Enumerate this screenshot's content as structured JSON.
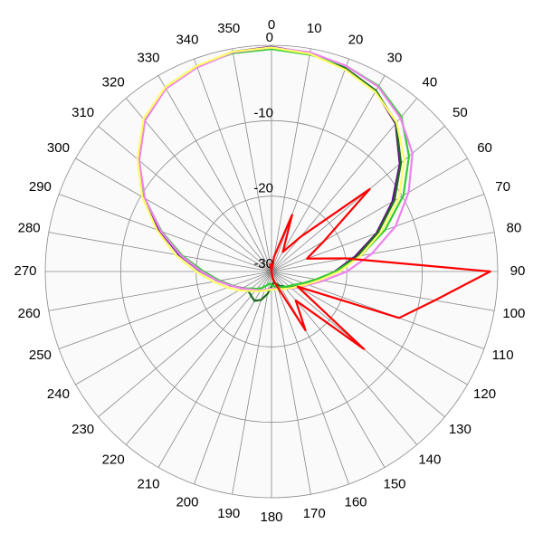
{
  "chart_data": {
    "type": "polar",
    "x": [
      0,
      10,
      20,
      30,
      40,
      50,
      60,
      70,
      80,
      90,
      100,
      110,
      120,
      130,
      140,
      150,
      160,
      170,
      180,
      190,
      200,
      210,
      220,
      230,
      240,
      250,
      260,
      270,
      280,
      290,
      300,
      310,
      320,
      330,
      340,
      350
    ],
    "xticks": [
      0,
      10,
      20,
      30,
      40,
      50,
      60,
      70,
      80,
      90,
      100,
      110,
      120,
      130,
      140,
      150,
      160,
      170,
      180,
      190,
      200,
      210,
      220,
      230,
      240,
      250,
      260,
      270,
      280,
      290,
      300,
      310,
      320,
      330,
      340,
      350
    ],
    "ylim": [
      -30,
      0
    ],
    "yticks": [
      0,
      -10,
      -20,
      -30
    ],
    "grid": true,
    "series": [
      {
        "color": "#6a0a8a",
        "values": [
          -0.2,
          -0.6,
          -1.4,
          -2.4,
          -4.4,
          -7.8,
          -11.5,
          -15.2,
          -18.8,
          -21.6,
          -23.6,
          -25,
          -26,
          -26.7,
          -27.1,
          -27.4,
          -27.6,
          -27.7,
          -27.7,
          -27.6,
          -27.4,
          -27.1,
          -26.8,
          -26.3,
          -25.6,
          -24.4,
          -22.8,
          -20.6,
          -17.6,
          -14.2,
          -10.5,
          -7,
          -3.8,
          -1.9,
          -1.1,
          -0.4
        ]
      },
      {
        "color": "#1a6b1a",
        "values": [
          -0.4,
          -0.6,
          -1.3,
          -2.3,
          -4.3,
          -7.6,
          -11.2,
          -15,
          -18.5,
          -21.5,
          -23.8,
          -25,
          -26,
          -26.8,
          -27.4,
          -27.8,
          -28.3,
          -28.5,
          -28,
          -27,
          -26,
          -25.5,
          -25.8,
          -26,
          -25.5,
          -24.5,
          -23,
          -20.8,
          -17.8,
          -14.4,
          -10.6,
          -7,
          -3.8,
          -1.9,
          -1.1,
          -0.5
        ]
      },
      {
        "color": "#33cc33",
        "values": [
          -0.5,
          -0.8,
          -1.0,
          -1.6,
          -3.2,
          -6.2,
          -9.8,
          -14,
          -18,
          -21.5,
          -24,
          -25.5,
          -26.5,
          -27,
          -27.3,
          -27.6,
          -27.8,
          -28,
          -28.2,
          -28.4,
          -28,
          -27.5,
          -27,
          -26.5,
          -25.5,
          -24.5,
          -23,
          -21,
          -18,
          -14.5,
          -10.5,
          -7,
          -3.8,
          -1.8,
          -1,
          -0.6
        ]
      },
      {
        "color": "#ee82ee",
        "values": [
          -0.3,
          -0.5,
          -1.0,
          -1.7,
          -3.4,
          -5.6,
          -9,
          -12.5,
          -16.5,
          -20,
          -23,
          -24.8,
          -25.8,
          -26.5,
          -27,
          -27.3,
          -27.6,
          -27.7,
          -27.7,
          -27.6,
          -27.4,
          -27.1,
          -26.8,
          -26.3,
          -25.5,
          -24.4,
          -22.8,
          -20.7,
          -17.8,
          -14.4,
          -10.6,
          -7.1,
          -3.9,
          -2,
          -1.2,
          -0.5
        ]
      },
      {
        "color": "#ffff66",
        "values": [
          -0.3,
          -0.7,
          -1.5,
          -2.5,
          -4.2,
          -7,
          -10.5,
          -14.5,
          -18,
          -21,
          -23.5,
          -25,
          -26,
          -26.6,
          -27,
          -27.3,
          -27.5,
          -27.6,
          -27.6,
          -27.5,
          -27.3,
          -27,
          -26.6,
          -26,
          -25,
          -23.8,
          -22.2,
          -20,
          -17,
          -13.8,
          -10.2,
          -6.8,
          -3.6,
          -1.8,
          -1,
          -0.4
        ]
      },
      {
        "color": "#ff0000",
        "values": [
          -30,
          -28,
          -22,
          -27,
          -24,
          -13,
          -22,
          -25,
          -20,
          -1,
          -8,
          -12,
          -26,
          -14,
          -25,
          -21,
          -28,
          -29,
          -30,
          -30,
          -30,
          -30,
          -30,
          -30,
          -30,
          -30,
          -30,
          -30,
          -30,
          -30,
          -30,
          -30,
          -30,
          -30,
          -30,
          -29
        ]
      }
    ]
  }
}
